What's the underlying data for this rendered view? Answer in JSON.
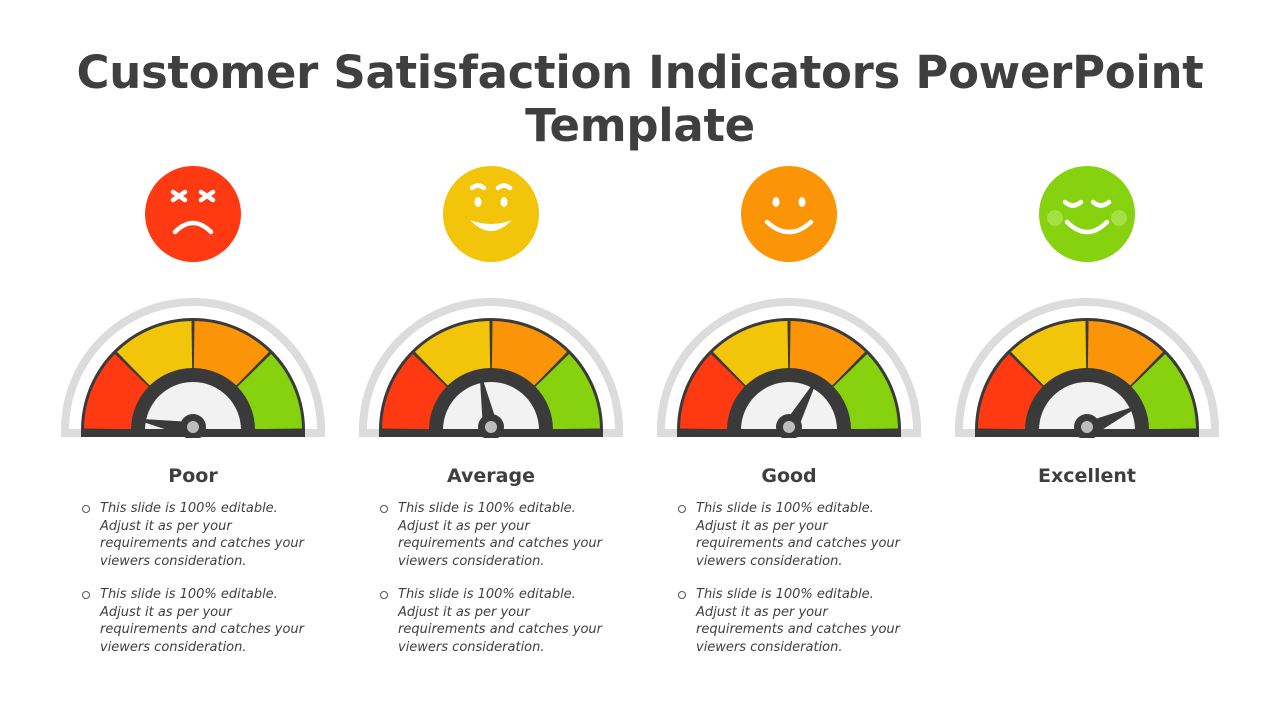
{
  "title": "Customer Satisfaction Indicators PowerPoint Template",
  "colors": {
    "red": "#ff3a12",
    "yellow": "#f2c40a",
    "orange": "#fb9406",
    "green": "#86d20e",
    "dark": "#3a3a3a",
    "track": "#dcdcdc"
  },
  "indicators": [
    {
      "label": "Poor",
      "face_color": "#ff3a12",
      "face_icon": "angry-face-icon",
      "needle_fraction": 0.06,
      "bullets": [
        "This slide is 100% editable. Adjust it as per your requirements and catches your viewers consideration.",
        "This slide is 100% editable. Adjust it as per your requirements and catches your viewers consideration."
      ]
    },
    {
      "label": "Average",
      "face_color": "#f2c40a",
      "face_icon": "smiling-face-icon",
      "needle_fraction": 0.44,
      "bullets": [
        "This slide is 100% editable. Adjust it as per your requirements and catches your viewers consideration.",
        "This slide is 100% editable. Adjust it as per your requirements and catches your viewers consideration."
      ]
    },
    {
      "label": "Good",
      "face_color": "#fb9406",
      "face_icon": "happy-face-icon",
      "needle_fraction": 0.66,
      "bullets": [
        "This slide is 100% editable. Adjust it as per your requirements and catches your viewers consideration.",
        "This slide is 100% editable. Adjust it as per your requirements and catches your viewers consideration."
      ]
    },
    {
      "label": "Excellent",
      "face_color": "#86d20e",
      "face_icon": "content-face-icon",
      "needle_fraction": 0.86,
      "bullets": []
    }
  ]
}
